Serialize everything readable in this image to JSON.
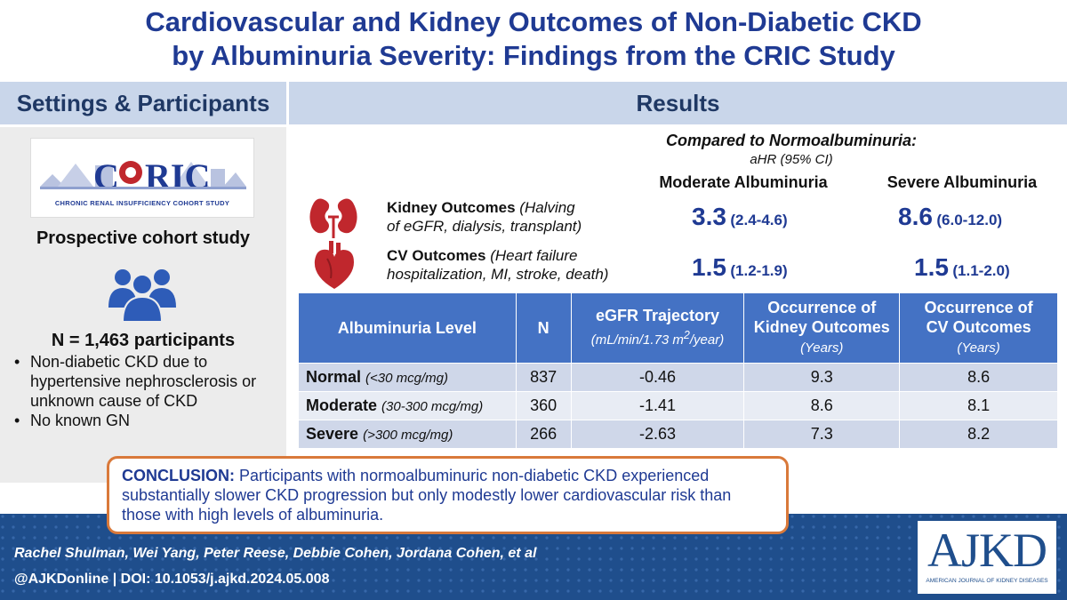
{
  "title": {
    "line1": "Cardiovascular and Kidney Outcomes of Non-Diabetic CKD",
    "line2": "by Albuminuria Severity: Findings from the CRIC Study"
  },
  "left": {
    "header": "Settings & Participants",
    "logo_text": "CHRONIC RENAL INSUFFICIENCY COHORT STUDY",
    "study_type": "Prospective cohort study",
    "participants": "N = 1,463 participants",
    "bullets": [
      "Non-diabetic CKD due to hypertensive nephrosclerosis or unknown cause of CKD",
      "No known GN"
    ]
  },
  "results": {
    "header": "Results",
    "compared_title": "Compared to Normoalbuminuria:",
    "compared_sub": "aHR (95% CI)",
    "col_moderate": "Moderate Albuminuria",
    "col_severe": "Severe Albuminuria",
    "kidney": {
      "label": "Kidney Outcomes",
      "detail_a": "(Halving",
      "detail_b": "of eGFR, dialysis, transplant)",
      "moderate_hr": "3.3",
      "moderate_ci": "(2.4-4.6)",
      "severe_hr": "8.6",
      "severe_ci": "(6.0-12.0)"
    },
    "cv": {
      "label": "CV Outcomes",
      "detail_a": "(Heart failure",
      "detail_b": "hospitalization, MI, stroke, death)",
      "moderate_hr": "1.5",
      "moderate_ci": "(1.2-1.9)",
      "severe_hr": "1.5",
      "severe_ci": "(1.1-2.0)"
    }
  },
  "table": {
    "headers": {
      "level": "Albuminuria Level",
      "n": "N",
      "egfr": "eGFR Trajectory",
      "egfr_unit_a": "(mL/min/1.73 m",
      "egfr_unit_sup": "2",
      "egfr_unit_b": "/year)",
      "kidney_a": "Occurrence of",
      "kidney_b": "Kidney Outcomes",
      "kidney_unit": "(Years)",
      "cv_a": "Occurrence of",
      "cv_b": "CV Outcomes",
      "cv_unit": "(Years)"
    },
    "rows": [
      {
        "level": "Normal",
        "range": "(<30 mcg/mg)",
        "n": "837",
        "egfr": "-0.46",
        "kidney": "9.3",
        "cv": "8.6"
      },
      {
        "level": "Moderate",
        "range": "(30-300 mcg/mg)",
        "n": "360",
        "egfr": "-1.41",
        "kidney": "8.6",
        "cv": "8.1"
      },
      {
        "level": "Severe",
        "range": "(>300 mcg/mg)",
        "n": "266",
        "egfr": "-2.63",
        "kidney": "7.3",
        "cv": "8.2"
      }
    ]
  },
  "conclusion": {
    "label": "CONCLUSION:",
    "text": " Participants with normoalbuminuric non-diabetic CKD experienced substantially slower CKD progression but only modestly lower cardiovascular risk than those with high levels of albuminuria."
  },
  "footer": {
    "authors": "Rachel Shulman, Wei Yang, Peter Reese, Debbie Cohen, Jordana Cohen, et al",
    "doi": "@AJKDonline | DOI: 10.1053/j.ajkd.2024.05.008"
  },
  "journal": {
    "logo": "AJKD",
    "subtitle": "AMERICAN JOURNAL OF KIDNEY DISEASES"
  },
  "colors": {
    "title": "#1f3a93",
    "section_header_bg": "#c9d6ea",
    "table_header": "#4472c4",
    "footer": "#1f4e8c",
    "conclusion_border": "#d9793a",
    "icon_red": "#c0272d"
  },
  "icons": [
    "kidney-icon",
    "heart-icon",
    "people-icon",
    "cric-logo"
  ]
}
